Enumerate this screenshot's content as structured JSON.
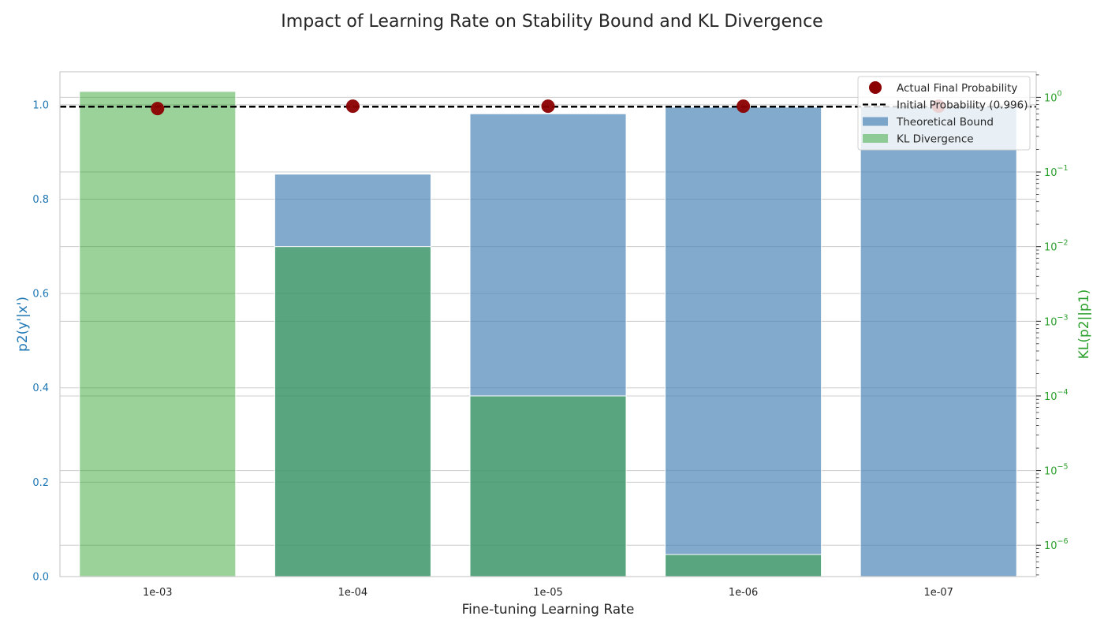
{
  "chart_data": {
    "type": "bar",
    "title": "Impact of Learning Rate on Stability Bound and KL Divergence",
    "xlabel": "Fine-tuning Learning Rate",
    "ylabel": "p2(y'|x')",
    "ylabel_right": "KL(p2||p1)",
    "categories": [
      "1e-03",
      "1e-04",
      "1e-05",
      "1e-06",
      "1e-07"
    ],
    "ylim": [
      0,
      1.07
    ],
    "yticks": [
      "0.0",
      "0.2",
      "0.4",
      "0.6",
      "0.8",
      "1.0"
    ],
    "y2_scale": "log",
    "y2lim": [
      3.8e-07,
      2.2
    ],
    "y2ticks": [
      {
        "base": "10",
        "exp": "0",
        "value": 1
      },
      {
        "base": "10",
        "exp": "−1",
        "value": 0.1
      },
      {
        "base": "10",
        "exp": "−2",
        "value": 0.01
      },
      {
        "base": "10",
        "exp": "−3",
        "value": 0.001
      },
      {
        "base": "10",
        "exp": "−4",
        "value": 0.0001
      },
      {
        "base": "10",
        "exp": "−5",
        "value": 1e-05
      },
      {
        "base": "10",
        "exp": "−6",
        "value": 1e-06
      }
    ],
    "series": [
      {
        "name": "Theoretical Bound",
        "type": "bar",
        "axis": "left",
        "color": "#4682b4",
        "values": [
          0.0,
          0.853,
          0.981,
          0.995,
          0.996
        ]
      },
      {
        "name": "KL Divergence",
        "type": "bar",
        "axis": "right",
        "scale": "log",
        "color": "#2ca02c",
        "values": [
          1.2,
          0.01,
          0.0001,
          7.5e-07,
          0.0
        ]
      },
      {
        "name": "Actual Final Probability",
        "type": "scatter",
        "axis": "left",
        "color": "#8b0000",
        "values": [
          0.992,
          0.997,
          0.997,
          0.997,
          0.997
        ]
      },
      {
        "name": "Initial Probability (0.996)",
        "type": "hline",
        "axis": "left",
        "color": "#000000",
        "value": 0.996
      }
    ],
    "legend_position": "top-right",
    "colors": {
      "left_axis": "#1f77b4",
      "right_axis": "#2ca02c",
      "grid": "#cccccc",
      "frame": "#cccccc"
    }
  }
}
